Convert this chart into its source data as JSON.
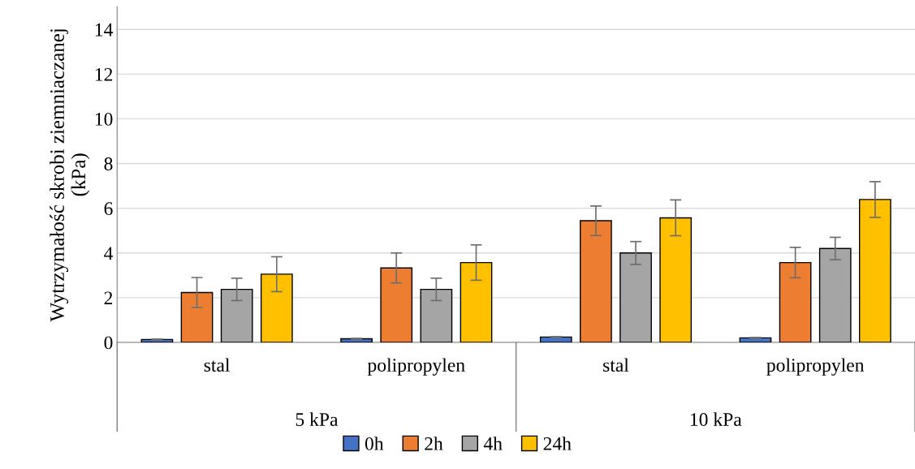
{
  "chart_data": {
    "type": "bar",
    "ylabel": "Wytrzymałość skrobi ziemniaczanej\n(kPa)",
    "categories": [
      "stal",
      "polipropylen",
      "stal",
      "polipropylen"
    ],
    "annotations": [
      "5 kPa",
      "10 kPa"
    ],
    "series": [
      {
        "name": "0h",
        "color": "#4472c4",
        "values": [
          0.13,
          0.16,
          0.24,
          0.2
        ],
        "errors": [
          0.02,
          0.02,
          0.02,
          0.02
        ]
      },
      {
        "name": "2h",
        "color": "#ed7d31",
        "values": [
          2.23,
          3.33,
          5.44,
          3.57
        ],
        "errors": [
          0.67,
          0.67,
          0.66,
          0.68
        ]
      },
      {
        "name": "4h",
        "color": "#a5a5a5",
        "values": [
          2.37,
          2.37,
          4.0,
          4.2
        ],
        "errors": [
          0.5,
          0.5,
          0.51,
          0.5
        ]
      },
      {
        "name": "24h",
        "color": "#ffc000",
        "values": [
          3.05,
          3.57,
          5.57,
          6.39
        ],
        "errors": [
          0.78,
          0.79,
          0.8,
          0.8
        ]
      }
    ],
    "ylim": [
      0,
      15
    ],
    "yticks": [
      0,
      2,
      4,
      6,
      8,
      10,
      12,
      14
    ],
    "grid": "y",
    "legend": "bottom"
  }
}
